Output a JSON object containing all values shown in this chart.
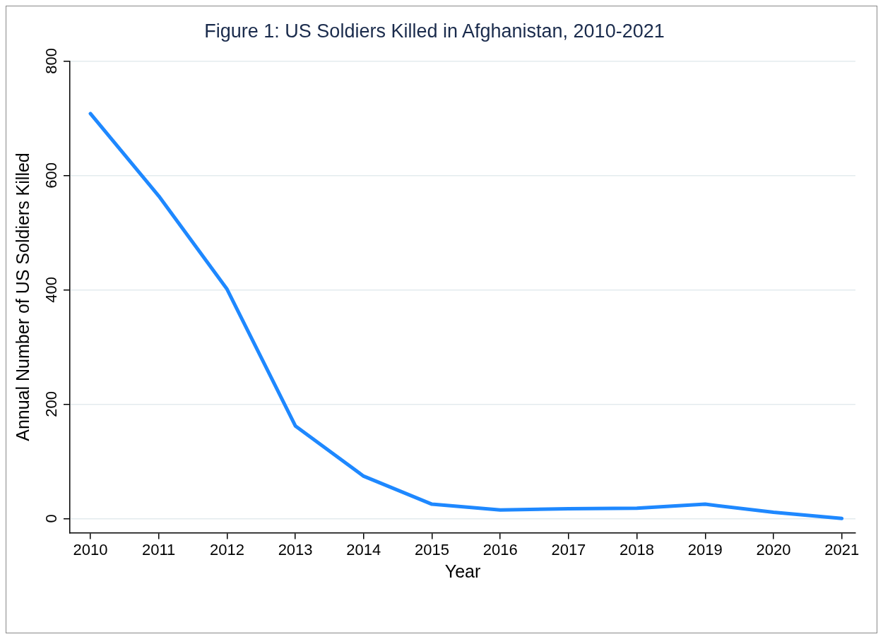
{
  "chart_data": {
    "type": "line",
    "title": "Figure 1: US Soldiers Killed in Afghanistan, 2010-2021",
    "xlabel": "Year",
    "ylabel": "Annual Number of US Soldiers Killed",
    "x": [
      2010,
      2011,
      2012,
      2013,
      2014,
      2015,
      2016,
      2017,
      2018,
      2019,
      2020,
      2021
    ],
    "series": [
      {
        "color": "#1e88ff",
        "values": [
          708,
          564,
          401,
          162,
          74,
          25,
          15,
          17,
          18,
          25,
          11,
          0
        ]
      }
    ],
    "xlim": [
      2009.7,
      2021.2
    ],
    "xticks": [
      2010,
      2011,
      2012,
      2013,
      2014,
      2015,
      2016,
      2017,
      2018,
      2019,
      2020,
      2021
    ],
    "ylim": [
      -25,
      800
    ],
    "yticks": [
      0,
      200,
      400,
      600,
      800
    ],
    "grid": "y",
    "legend": false,
    "marker": "none",
    "line_style": "solid"
  }
}
